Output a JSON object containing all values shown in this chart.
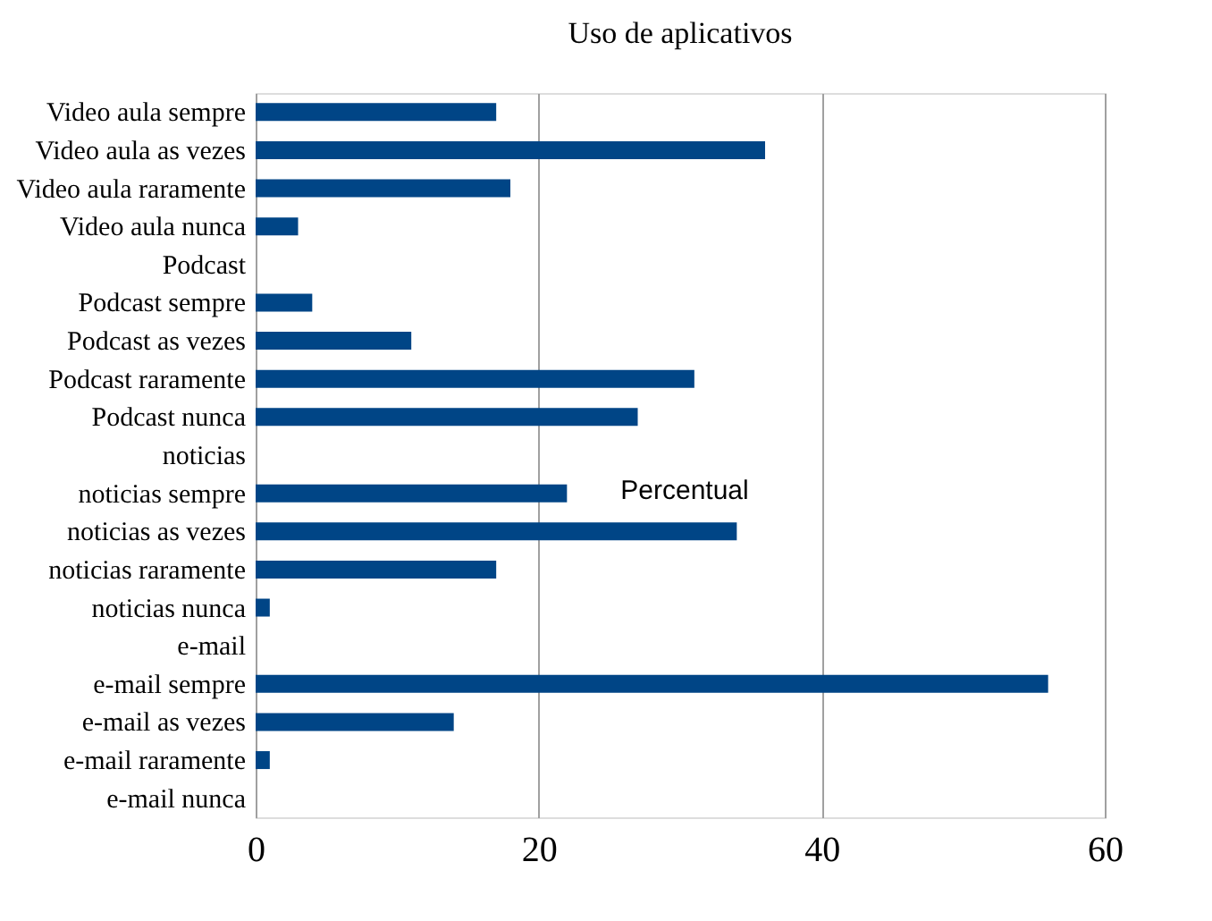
{
  "chart_data": {
    "type": "bar",
    "orientation": "horizontal",
    "title": "Uso de aplicativos",
    "categories": [
      "Video aula sempre",
      "Video aula as vezes",
      "Video aula raramente",
      "Video aula nunca",
      "Podcast",
      "Podcast sempre",
      "Podcast as vezes",
      "Podcast raramente",
      "Podcast nunca",
      "noticias",
      "noticias sempre",
      "noticias as vezes",
      "noticias raramente",
      "noticias nunca",
      "e-mail",
      "e-mail sempre",
      "e-mail as vezes",
      "e-mail raramente",
      "e-mail nunca"
    ],
    "values": [
      17,
      36,
      18,
      3,
      null,
      4,
      11,
      31,
      27,
      null,
      22,
      34,
      17,
      1,
      null,
      56,
      14,
      1,
      0
    ],
    "color": "#004586",
    "xlim": [
      0,
      60
    ],
    "xticks": [
      0,
      20,
      40,
      60
    ],
    "grid": "x",
    "annotations": [
      "Percentual"
    ]
  }
}
